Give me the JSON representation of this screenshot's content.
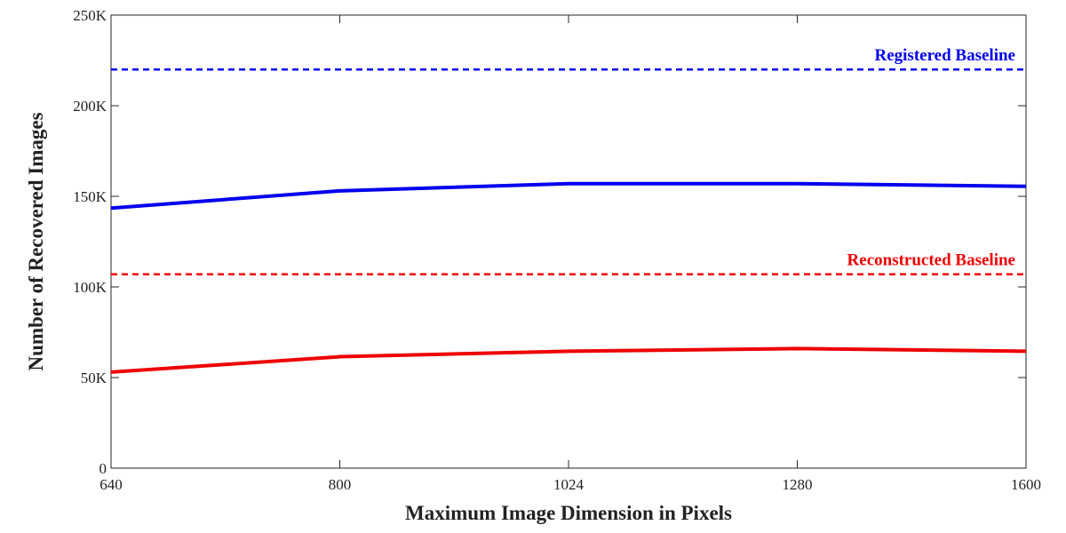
{
  "chart_data": {
    "type": "line",
    "xlabel": "Maximum Image Dimension in Pixels",
    "ylabel": "Number of Recovered Images",
    "x_categories": [
      "640",
      "800",
      "1024",
      "1280",
      "1600"
    ],
    "y_ticks": [
      0,
      50000,
      100000,
      150000,
      200000,
      250000
    ],
    "y_tick_labels": [
      "0",
      "50K",
      "100K",
      "150K",
      "200K",
      "250K"
    ],
    "ylim": [
      0,
      250000
    ],
    "grid": false,
    "series": [
      {
        "key": "registered",
        "color": "#0000ee",
        "style": "solid",
        "values": [
          143500,
          153000,
          157000,
          157000,
          155500
        ]
      },
      {
        "key": "reconstructed",
        "color": "#ee0000",
        "style": "solid",
        "values": [
          53000,
          61500,
          64500,
          66000,
          64500
        ]
      }
    ],
    "baselines": [
      {
        "name": "Registered Baseline",
        "value": 220000,
        "color": "#0000ee",
        "style": "dashed"
      },
      {
        "name": "Reconstructed Baseline",
        "value": 107000,
        "color": "#ee0000",
        "style": "dashed"
      }
    ]
  }
}
